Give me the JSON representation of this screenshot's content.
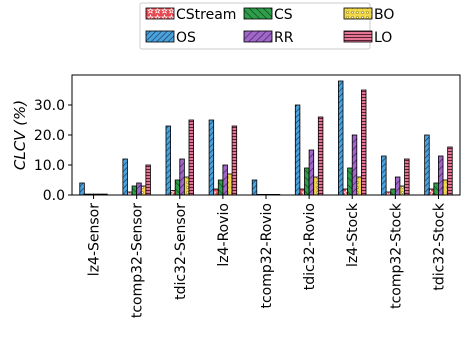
{
  "chart_data": {
    "type": "bar",
    "ylabel": "CLCV (%)",
    "xlabel": "",
    "ylim": [
      0,
      40
    ],
    "yticks": [
      "0.0",
      "10.0",
      "20.0",
      "30.0"
    ],
    "grid": false,
    "legend_position": "top-center",
    "categories": [
      "lz4-Sensor",
      "tcomp32-Sensor",
      "tdic32-Sensor",
      "lz4-Rovio",
      "tcomp32-Rovio",
      "tdic32-Rovio",
      "lz4-Stock",
      "tcomp32-Stock",
      "tdic32-Stock"
    ],
    "series": [
      {
        "name": "OS",
        "color": "#4aa3df",
        "pattern": "diag-dense",
        "values": [
          4,
          12,
          23,
          25,
          5,
          30,
          38,
          13,
          20
        ]
      },
      {
        "name": "CStream",
        "color": "#e8474f",
        "pattern": "stars",
        "values": [
          0.3,
          1,
          1.5,
          2,
          0.2,
          2,
          2,
          1,
          2
        ]
      },
      {
        "name": "CS",
        "color": "#2e9e4a",
        "pattern": "diag-back",
        "values": [
          0.3,
          3,
          5,
          5,
          0.2,
          9,
          9,
          2,
          4
        ]
      },
      {
        "name": "RR",
        "color": "#a066c8",
        "pattern": "diag-fwd",
        "values": [
          0.3,
          4,
          12,
          10,
          0.2,
          15,
          20,
          6,
          13
        ]
      },
      {
        "name": "BO",
        "color": "#f0d84a",
        "pattern": "dots",
        "values": [
          0.3,
          3,
          6,
          7,
          0.2,
          6,
          6,
          3,
          5
        ]
      },
      {
        "name": "LO",
        "color": "#e57595",
        "pattern": "horiz",
        "values": [
          0.3,
          10,
          25,
          23,
          0.2,
          26,
          35,
          12,
          16
        ]
      }
    ],
    "legend_rows": [
      [
        "CStream",
        "CS",
        "BO"
      ],
      [
        "OS",
        "RR",
        "LO"
      ]
    ]
  }
}
